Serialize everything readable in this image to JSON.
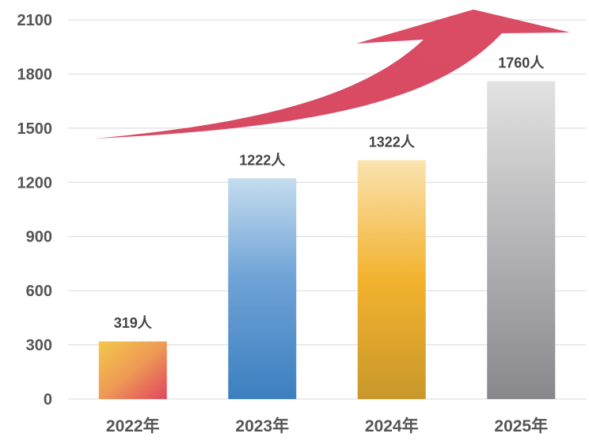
{
  "chart_data": {
    "type": "bar",
    "categories": [
      "2022年",
      "2023年",
      "2024年",
      "2025年"
    ],
    "values": [
      319,
      1222,
      1322,
      1760
    ],
    "data_labels": [
      "319人",
      "1222人",
      "1322人",
      "1760人"
    ],
    "yticks": [
      "0",
      "300",
      "600",
      "900",
      "1200",
      "1500",
      "1800",
      "2100"
    ],
    "ytick_values": [
      0,
      300,
      600,
      900,
      1200,
      1500,
      1800,
      2100
    ],
    "ylim": [
      0,
      2100
    ],
    "grid": true,
    "legend": "none",
    "trend_arrow": "upward curved arrow",
    "colors": {
      "bar_2022": [
        "#f4c84a",
        "#e0455e"
      ],
      "bar_2023": [
        "#c4dcee",
        "#3c7fc0"
      ],
      "bar_2024": [
        "#fae3b0",
        "#c9982c"
      ],
      "bar_2025": [
        "#e2e2e2",
        "#88888c"
      ],
      "arrow": "#d84b62",
      "grid": "#d9d9d9",
      "axis_text": "#555555"
    }
  }
}
